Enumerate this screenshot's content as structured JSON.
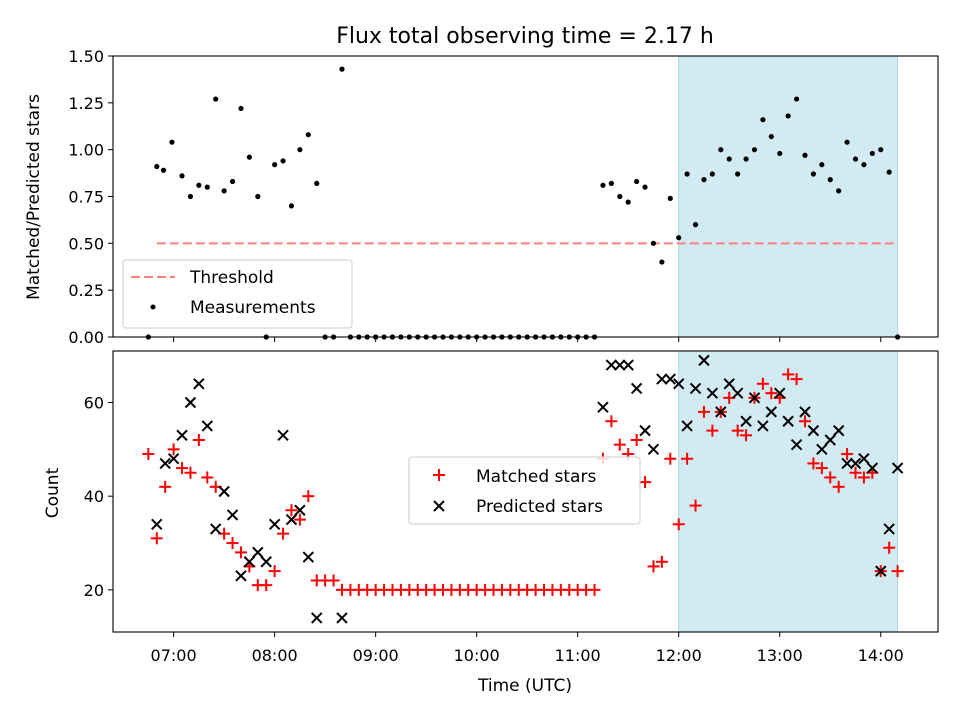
{
  "chart_data": [
    {
      "type": "scatter",
      "title": "Flux total observing time = 2.17 h",
      "ylabel": "Matched/Predicted stars",
      "ylim": [
        0,
        1.5
      ],
      "yticks": [
        "0.00",
        "0.25",
        "0.50",
        "0.75",
        "1.00",
        "1.25",
        "1.50"
      ],
      "highlight_span": {
        "x": [
          "12:00",
          "14:10"
        ],
        "color": "#add8e6"
      },
      "threshold": {
        "name": "Threshold",
        "value": 0.5,
        "color": "#ff7f7f",
        "style": "dashed"
      },
      "legend": {
        "position": "lower left"
      },
      "series": [
        {
          "name": "Measurements",
          "color": "#000000",
          "marker": "dot",
          "x": [
            "06:45",
            "06:50",
            "06:54",
            "06:59",
            "07:05",
            "07:10",
            "07:15",
            "07:20",
            "07:25",
            "07:30",
            "07:35",
            "07:40",
            "07:45",
            "07:50",
            "07:55",
            "08:00",
            "08:05",
            "08:10",
            "08:15",
            "08:20",
            "08:25",
            "08:30",
            "08:35",
            "08:40",
            "08:45",
            "08:50",
            "08:55",
            "09:00",
            "09:05",
            "09:10",
            "09:15",
            "09:20",
            "09:25",
            "09:30",
            "09:35",
            "09:40",
            "09:45",
            "09:50",
            "09:55",
            "10:00",
            "10:05",
            "10:10",
            "10:15",
            "10:20",
            "10:25",
            "10:30",
            "10:35",
            "10:40",
            "10:45",
            "10:50",
            "10:55",
            "11:00",
            "11:05",
            "11:10",
            "11:15",
            "11:20",
            "11:25",
            "11:30",
            "11:35",
            "11:40",
            "11:45",
            "11:50",
            "11:55",
            "12:00",
            "12:05",
            "12:10",
            "12:15",
            "12:20",
            "12:25",
            "12:30",
            "12:35",
            "12:40",
            "12:45",
            "12:50",
            "12:55",
            "13:00",
            "13:05",
            "13:10",
            "13:15",
            "13:20",
            "13:25",
            "13:30",
            "13:35",
            "13:40",
            "13:45",
            "13:50",
            "13:55",
            "14:00",
            "14:05",
            "14:10"
          ],
          "y": [
            0.0,
            0.91,
            0.89,
            1.04,
            0.86,
            0.75,
            0.81,
            0.8,
            1.27,
            0.78,
            0.83,
            1.22,
            0.96,
            0.75,
            0.0,
            0.92,
            0.94,
            0.7,
            1.0,
            1.08,
            0.82,
            0.0,
            0.0,
            1.43,
            0.0,
            0.0,
            0.0,
            0.0,
            0.0,
            0.0,
            0.0,
            0.0,
            0.0,
            0.0,
            0.0,
            0.0,
            0.0,
            0.0,
            0.0,
            0.0,
            0.0,
            0.0,
            0.0,
            0.0,
            0.0,
            0.0,
            0.0,
            0.0,
            0.0,
            0.0,
            0.0,
            0.0,
            0.0,
            0.0,
            0.81,
            0.82,
            0.75,
            0.72,
            0.83,
            0.8,
            0.5,
            0.4,
            0.74,
            0.53,
            0.87,
            0.6,
            0.84,
            0.87,
            1.0,
            0.95,
            0.87,
            0.95,
            1.0,
            1.16,
            1.07,
            0.98,
            1.18,
            1.27,
            0.97,
            0.87,
            0.92,
            0.84,
            0.78,
            1.04,
            0.95,
            0.92,
            0.98,
            1.0,
            0.88,
            0.0
          ]
        }
      ]
    },
    {
      "type": "scatter",
      "xlabel": "Time (UTC)",
      "ylabel": "Count",
      "ylim": [
        11,
        71
      ],
      "yticks": [
        "20",
        "40",
        "60"
      ],
      "xticks": [
        "07:00",
        "08:00",
        "09:00",
        "10:00",
        "11:00",
        "12:00",
        "13:00",
        "14:00"
      ],
      "highlight_span": {
        "x": [
          "12:00",
          "14:10"
        ],
        "color": "#add8e6"
      },
      "legend": {
        "position": "center"
      },
      "series": [
        {
          "name": "Matched stars",
          "color": "#ff0000",
          "marker": "plus",
          "x": [
            "06:45",
            "06:50",
            "06:55",
            "07:00",
            "07:05",
            "07:10",
            "07:15",
            "07:20",
            "07:25",
            "07:30",
            "07:35",
            "07:40",
            "07:45",
            "07:50",
            "07:55",
            "08:00",
            "08:05",
            "08:10",
            "08:15",
            "08:20",
            "08:25",
            "08:30",
            "08:35",
            "08:40",
            "08:45",
            "08:50",
            "08:55",
            "09:00",
            "09:05",
            "09:10",
            "09:15",
            "09:20",
            "09:25",
            "09:30",
            "09:35",
            "09:40",
            "09:45",
            "09:50",
            "09:55",
            "10:00",
            "10:05",
            "10:10",
            "10:15",
            "10:20",
            "10:25",
            "10:30",
            "10:35",
            "10:40",
            "10:45",
            "10:50",
            "10:55",
            "11:00",
            "11:05",
            "11:10",
            "11:15",
            "11:20",
            "11:25",
            "11:30",
            "11:35",
            "11:40",
            "11:45",
            "11:50",
            "11:55",
            "12:00",
            "12:05",
            "12:10",
            "12:15",
            "12:20",
            "12:25",
            "12:30",
            "12:35",
            "12:40",
            "12:45",
            "12:50",
            "12:55",
            "13:00",
            "13:05",
            "13:10",
            "13:15",
            "13:20",
            "13:25",
            "13:30",
            "13:35",
            "13:40",
            "13:45",
            "13:50",
            "13:55",
            "14:00",
            "14:05",
            "14:10"
          ],
          "y": [
            49,
            31,
            42,
            50,
            46,
            45,
            52,
            44,
            42,
            32,
            30,
            28,
            25,
            21,
            21,
            24,
            32,
            37,
            35,
            40,
            22,
            22,
            22,
            20,
            20,
            20,
            20,
            20,
            20,
            20,
            20,
            20,
            20,
            20,
            20,
            20,
            20,
            20,
            20,
            20,
            20,
            20,
            20,
            20,
            20,
            20,
            20,
            20,
            20,
            20,
            20,
            20,
            20,
            20,
            48,
            56,
            51,
            49,
            52,
            43,
            25,
            26,
            48,
            34,
            48,
            38,
            58,
            54,
            58,
            61,
            54,
            53,
            61,
            64,
            62,
            61,
            66,
            65,
            56,
            47,
            46,
            44,
            42,
            49,
            45,
            44,
            45,
            24,
            29,
            24
          ]
        },
        {
          "name": "Predicted stars",
          "color": "#000000",
          "marker": "x",
          "x": [
            "06:50",
            "06:55",
            "07:00",
            "07:05",
            "07:10",
            "07:15",
            "07:20",
            "07:25",
            "07:30",
            "07:35",
            "07:40",
            "07:45",
            "07:50",
            "07:55",
            "08:00",
            "08:05",
            "08:10",
            "08:15",
            "08:20",
            "08:25",
            "08:40",
            "11:15",
            "11:20",
            "11:25",
            "11:30",
            "11:35",
            "11:40",
            "11:45",
            "11:50",
            "11:55",
            "12:00",
            "12:05",
            "12:10",
            "12:15",
            "12:20",
            "12:25",
            "12:30",
            "12:35",
            "12:40",
            "12:45",
            "12:50",
            "12:55",
            "13:00",
            "13:05",
            "13:10",
            "13:15",
            "13:20",
            "13:25",
            "13:30",
            "13:35",
            "13:40",
            "13:45",
            "13:50",
            "13:55",
            "14:00",
            "14:05",
            "14:10"
          ],
          "y": [
            34,
            47,
            48,
            53,
            60,
            64,
            55,
            33,
            41,
            36,
            23,
            26,
            28,
            26,
            34,
            53,
            35,
            37,
            27,
            14,
            14,
            59,
            68,
            68,
            68,
            63,
            54,
            50,
            65,
            65,
            64,
            55,
            63,
            69,
            62,
            58,
            64,
            62,
            56,
            61,
            55,
            58,
            62,
            56,
            51,
            58,
            54,
            50,
            52,
            54,
            47,
            47,
            48,
            46,
            24,
            33,
            46
          ]
        }
      ]
    }
  ]
}
